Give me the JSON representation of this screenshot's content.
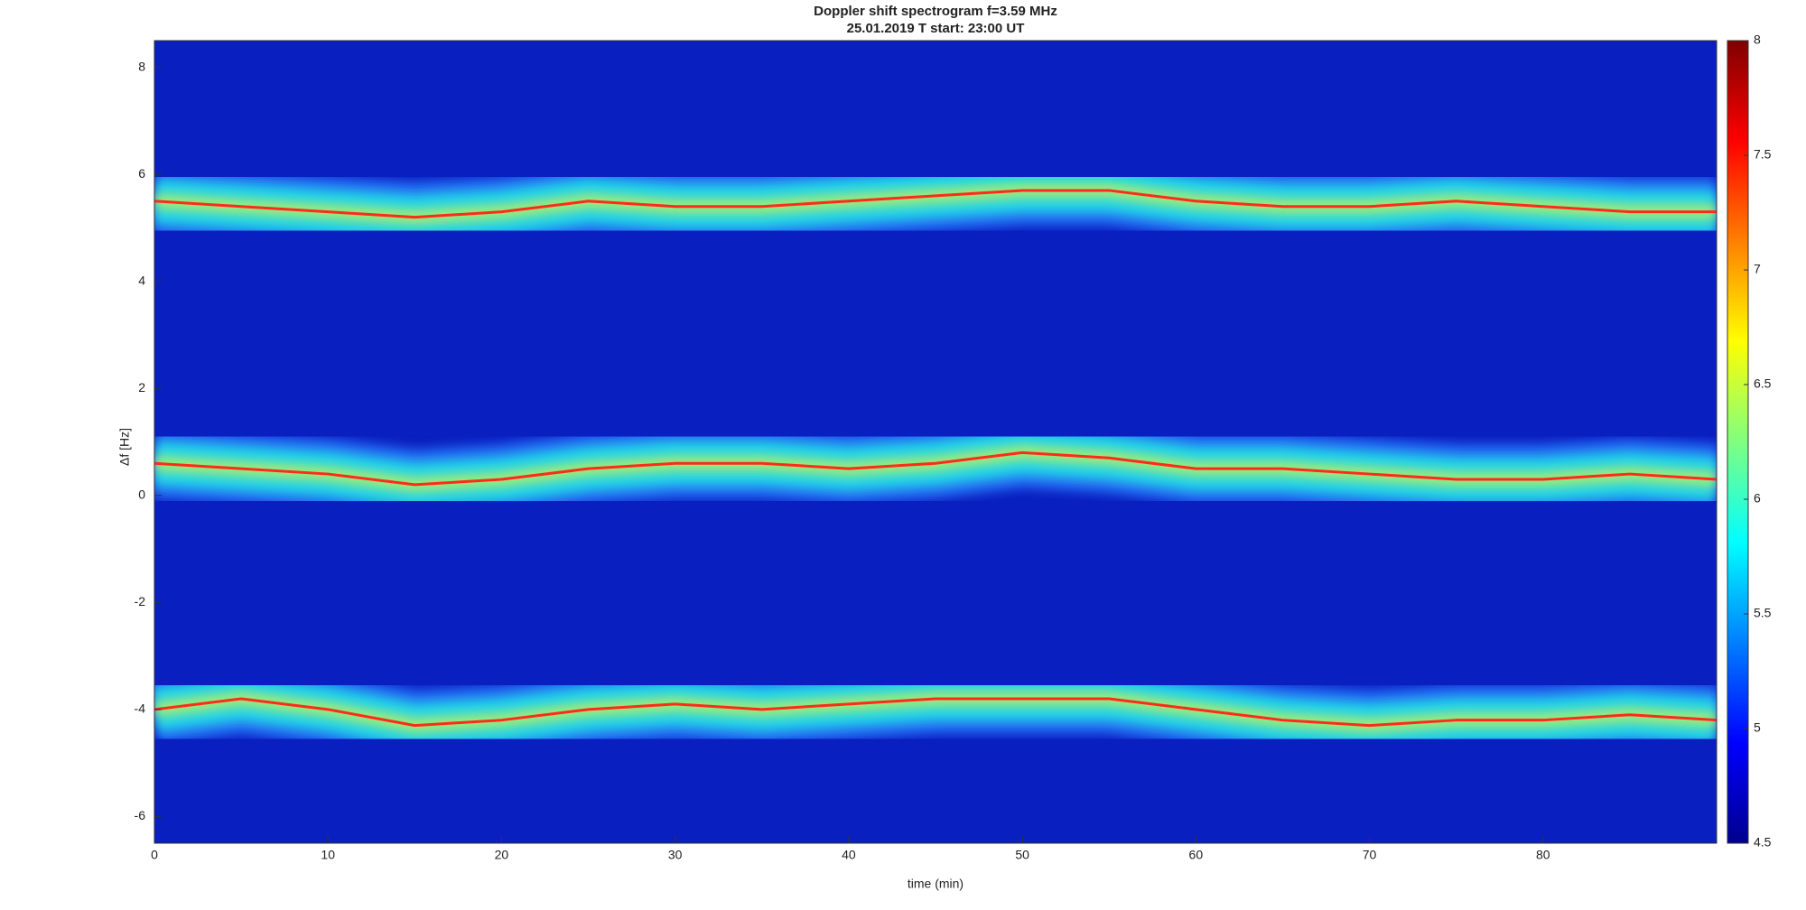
{
  "chart_data": {
    "type": "spectrogram",
    "title": "Doppler shift spectrogram f=3.59 MHz",
    "subtitle": "25.01.2019   T start: 23:00 UT",
    "x_label": "time (min)",
    "y_label": "Δf [Hz]",
    "xlim": [
      0,
      90
    ],
    "xticks": [
      0,
      10,
      20,
      30,
      40,
      50,
      60,
      70,
      80
    ],
    "ylim": [
      -6.5,
      8.5
    ],
    "yticks": [
      -6,
      -4,
      -2,
      0,
      2,
      4,
      6,
      8
    ],
    "clim": [
      4.5,
      8
    ],
    "cticks": [
      4.5,
      5,
      5.5,
      6,
      6.5,
      7,
      7.5,
      8
    ],
    "colormap": "jet",
    "x": [
      0,
      5,
      10,
      15,
      20,
      25,
      30,
      35,
      40,
      45,
      50,
      55,
      60,
      65,
      70,
      75,
      80,
      85,
      90
    ],
    "series": [
      {
        "color": "#ff2a1a",
        "values": [
          5.5,
          5.4,
          5.3,
          5.2,
          5.3,
          5.5,
          5.4,
          5.4,
          5.5,
          5.6,
          5.7,
          5.7,
          5.5,
          5.4,
          5.4,
          5.5,
          5.4,
          5.3,
          5.3
        ]
      },
      {
        "color": "#ff2a1a",
        "values": [
          0.6,
          0.5,
          0.4,
          0.2,
          0.3,
          0.5,
          0.6,
          0.6,
          0.5,
          0.6,
          0.8,
          0.7,
          0.5,
          0.5,
          0.4,
          0.3,
          0.3,
          0.4,
          0.3
        ]
      },
      {
        "color": "#ff2a1a",
        "values": [
          -4.0,
          -3.8,
          -4.0,
          -4.3,
          -4.2,
          -4.0,
          -3.9,
          -4.0,
          -3.9,
          -3.8,
          -3.8,
          -3.8,
          -4.0,
          -4.2,
          -4.3,
          -4.2,
          -4.2,
          -4.1,
          -4.2
        ]
      }
    ]
  }
}
